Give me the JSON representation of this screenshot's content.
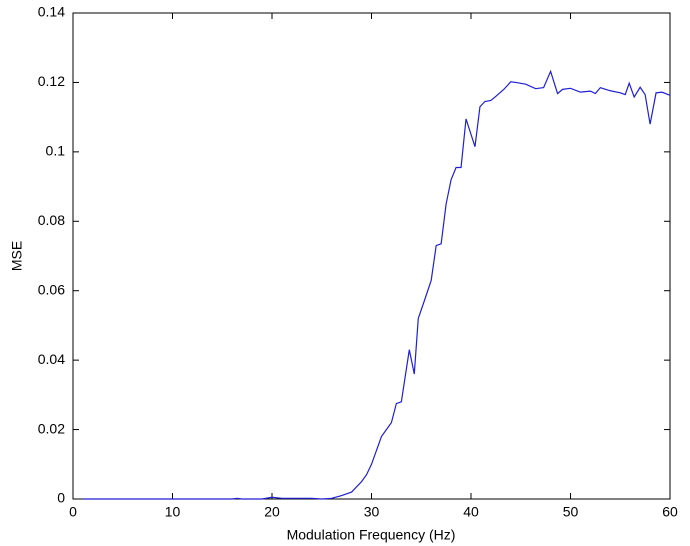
{
  "chart_data": {
    "type": "line",
    "xlabel": "Modulation Frequency (Hz)",
    "ylabel": "MSE",
    "x": [
      1,
      2,
      3,
      4,
      5,
      6,
      7,
      8,
      9,
      10,
      11,
      12,
      13,
      14,
      15,
      16,
      16.5,
      17,
      18,
      19,
      20,
      21,
      22,
      23,
      24,
      25,
      26,
      27,
      28,
      29,
      29.5,
      30,
      30.5,
      31,
      32,
      32.5,
      33,
      33.8,
      34.3,
      34.7,
      35.3,
      36,
      36.5,
      37,
      37.5,
      38,
      38.5,
      39,
      39.5,
      40.4,
      40.9,
      41.4,
      42,
      42.5,
      43.3,
      44,
      44.5,
      45.5,
      46.5,
      47.3,
      48,
      48.7,
      49.2,
      50,
      51,
      52,
      52.5,
      53,
      54,
      55,
      55.5,
      55.9,
      56.4,
      57,
      57.5,
      58,
      58.6,
      59.2,
      60
    ],
    "series": [
      {
        "name": "MSE",
        "color": "#1f1fd6",
        "values": [
          0,
          0,
          0,
          0,
          0,
          0,
          0,
          0,
          0,
          0,
          0,
          0,
          0,
          0,
          0,
          0,
          0.0002,
          0,
          0,
          0,
          0.0005,
          0.0002,
          0.0002,
          0.0002,
          0.0002,
          0,
          0.0002,
          0.001,
          0.002,
          0.005,
          0.007,
          0.01,
          0.014,
          0.018,
          0.022,
          0.0275,
          0.028,
          0.043,
          0.036,
          0.052,
          0.057,
          0.063,
          0.073,
          0.0735,
          0.085,
          0.092,
          0.0955,
          0.0955,
          0.1095,
          0.1015,
          0.113,
          0.1145,
          0.1148,
          0.116,
          0.118,
          0.1202,
          0.12,
          0.1195,
          0.1182,
          0.1185,
          0.1232,
          0.1168,
          0.118,
          0.1183,
          0.1172,
          0.1175,
          0.1168,
          0.1185,
          0.1176,
          0.117,
          0.1165,
          0.1198,
          0.1158,
          0.1186,
          0.1165,
          0.108,
          0.117,
          0.1172,
          0.1163
        ]
      }
    ],
    "xlim": [
      0,
      60
    ],
    "xticks": [
      0,
      10,
      20,
      30,
      40,
      50,
      60
    ],
    "ylim": [
      0,
      0.14
    ],
    "yticks": [
      0,
      0.02,
      0.04,
      0.06,
      0.08,
      0.1,
      0.12,
      0.14
    ],
    "grid": false
  }
}
